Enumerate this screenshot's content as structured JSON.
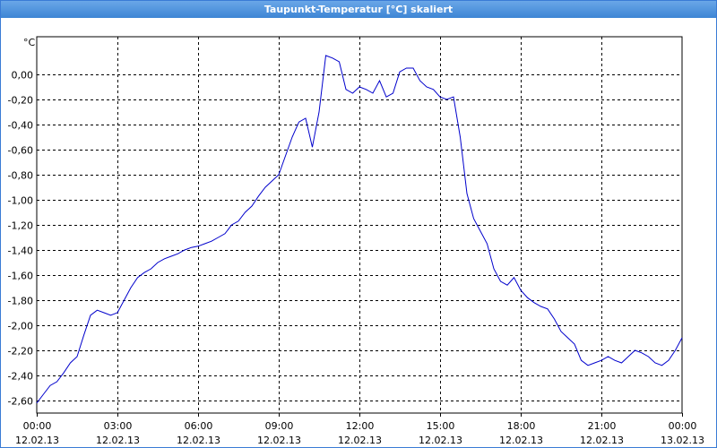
{
  "window": {
    "title": "Taupunkt-Temperatur [°C] skaliert"
  },
  "colors": {
    "line": "#0000cc",
    "grid": "#000000",
    "titlebar": "#3d85d4"
  },
  "chart_data": {
    "type": "line",
    "title": "Taupunkt-Temperatur [°C] skaliert",
    "ylabel": "°C",
    "xlabel": "",
    "ylim": [
      -2.7,
      0.3
    ],
    "xlim": [
      0,
      24
    ],
    "grid": true,
    "yticks": [
      "0,00",
      "-0,20",
      "-0,40",
      "-0,60",
      "-0,80",
      "-1,00",
      "-1,20",
      "-1,40",
      "-1,60",
      "-1,80",
      "-2,00",
      "-2,20",
      "-2,40",
      "-2,60"
    ],
    "ytick_values": [
      0,
      -0.2,
      -0.4,
      -0.6,
      -0.8,
      -1.0,
      -1.2,
      -1.4,
      -1.6,
      -1.8,
      -2.0,
      -2.2,
      -2.4,
      -2.6
    ],
    "xticks": [
      {
        "time": "00:00",
        "date": "12.02.13",
        "h": 0
      },
      {
        "time": "03:00",
        "date": "12.02.13",
        "h": 3
      },
      {
        "time": "06:00",
        "date": "12.02.13",
        "h": 6
      },
      {
        "time": "09:00",
        "date": "12.02.13",
        "h": 9
      },
      {
        "time": "12:00",
        "date": "12.02.13",
        "h": 12
      },
      {
        "time": "15:00",
        "date": "12.02.13",
        "h": 15
      },
      {
        "time": "18:00",
        "date": "12.02.13",
        "h": 18
      },
      {
        "time": "21:00",
        "date": "12.02.13",
        "h": 21
      },
      {
        "time": "00:00",
        "date": "13.02.13",
        "h": 24
      }
    ],
    "series": [
      {
        "x": [
          0,
          0.25,
          0.5,
          0.75,
          1.0,
          1.25,
          1.5,
          1.75,
          2.0,
          2.25,
          2.5,
          2.75,
          3.0,
          3.25,
          3.5,
          3.75,
          4.0,
          4.25,
          4.5,
          4.75,
          5.0,
          5.25,
          5.5,
          5.75,
          6.0,
          6.25,
          6.5,
          6.75,
          7.0,
          7.25,
          7.5,
          7.75,
          8.0,
          8.25,
          8.5,
          8.75,
          9.0,
          9.25,
          9.5,
          9.75,
          10.0,
          10.25,
          10.5,
          10.75,
          11.0,
          11.25,
          11.5,
          11.75,
          12.0,
          12.25,
          12.5,
          12.75,
          13.0,
          13.25,
          13.5,
          13.75,
          14.0,
          14.25,
          14.5,
          14.75,
          15.0,
          15.25,
          15.5,
          15.75,
          16.0,
          16.25,
          16.5,
          16.75,
          17.0,
          17.25,
          17.5,
          17.75,
          18.0,
          18.25,
          18.5,
          18.75,
          19.0,
          19.25,
          19.5,
          19.75,
          20.0,
          20.25,
          20.5,
          20.75,
          21.0,
          21.25,
          21.5,
          21.75,
          22.0,
          22.25,
          22.5,
          22.75,
          23.0,
          23.25,
          23.5,
          23.75,
          24.0
        ],
        "y": [
          -2.62,
          -2.55,
          -2.48,
          -2.45,
          -2.38,
          -2.3,
          -2.25,
          -2.08,
          -1.92,
          -1.88,
          -1.9,
          -1.92,
          -1.9,
          -1.8,
          -1.7,
          -1.62,
          -1.58,
          -1.55,
          -1.5,
          -1.47,
          -1.45,
          -1.43,
          -1.4,
          -1.38,
          -1.37,
          -1.35,
          -1.33,
          -1.3,
          -1.27,
          -1.2,
          -1.17,
          -1.1,
          -1.05,
          -0.97,
          -0.9,
          -0.85,
          -0.8,
          -0.65,
          -0.5,
          -0.38,
          -0.35,
          -0.58,
          -0.3,
          0.15,
          0.13,
          0.1,
          -0.12,
          -0.15,
          -0.1,
          -0.12,
          -0.15,
          -0.05,
          -0.18,
          -0.15,
          0.02,
          0.05,
          0.05,
          -0.05,
          -0.1,
          -0.12,
          -0.18,
          -0.2,
          -0.18,
          -0.5,
          -0.95,
          -1.15,
          -1.25,
          -1.35,
          -1.55,
          -1.65,
          -1.68,
          -1.62,
          -1.72,
          -1.78,
          -1.82,
          -1.85,
          -1.87,
          -1.95,
          -2.05,
          -2.1,
          -2.15,
          -2.28,
          -2.32,
          -2.3,
          -2.28,
          -2.25,
          -2.28,
          -2.3,
          -2.25,
          -2.2,
          -2.22,
          -2.25,
          -2.3,
          -2.32,
          -2.28,
          -2.2,
          -2.1
        ]
      }
    ]
  }
}
